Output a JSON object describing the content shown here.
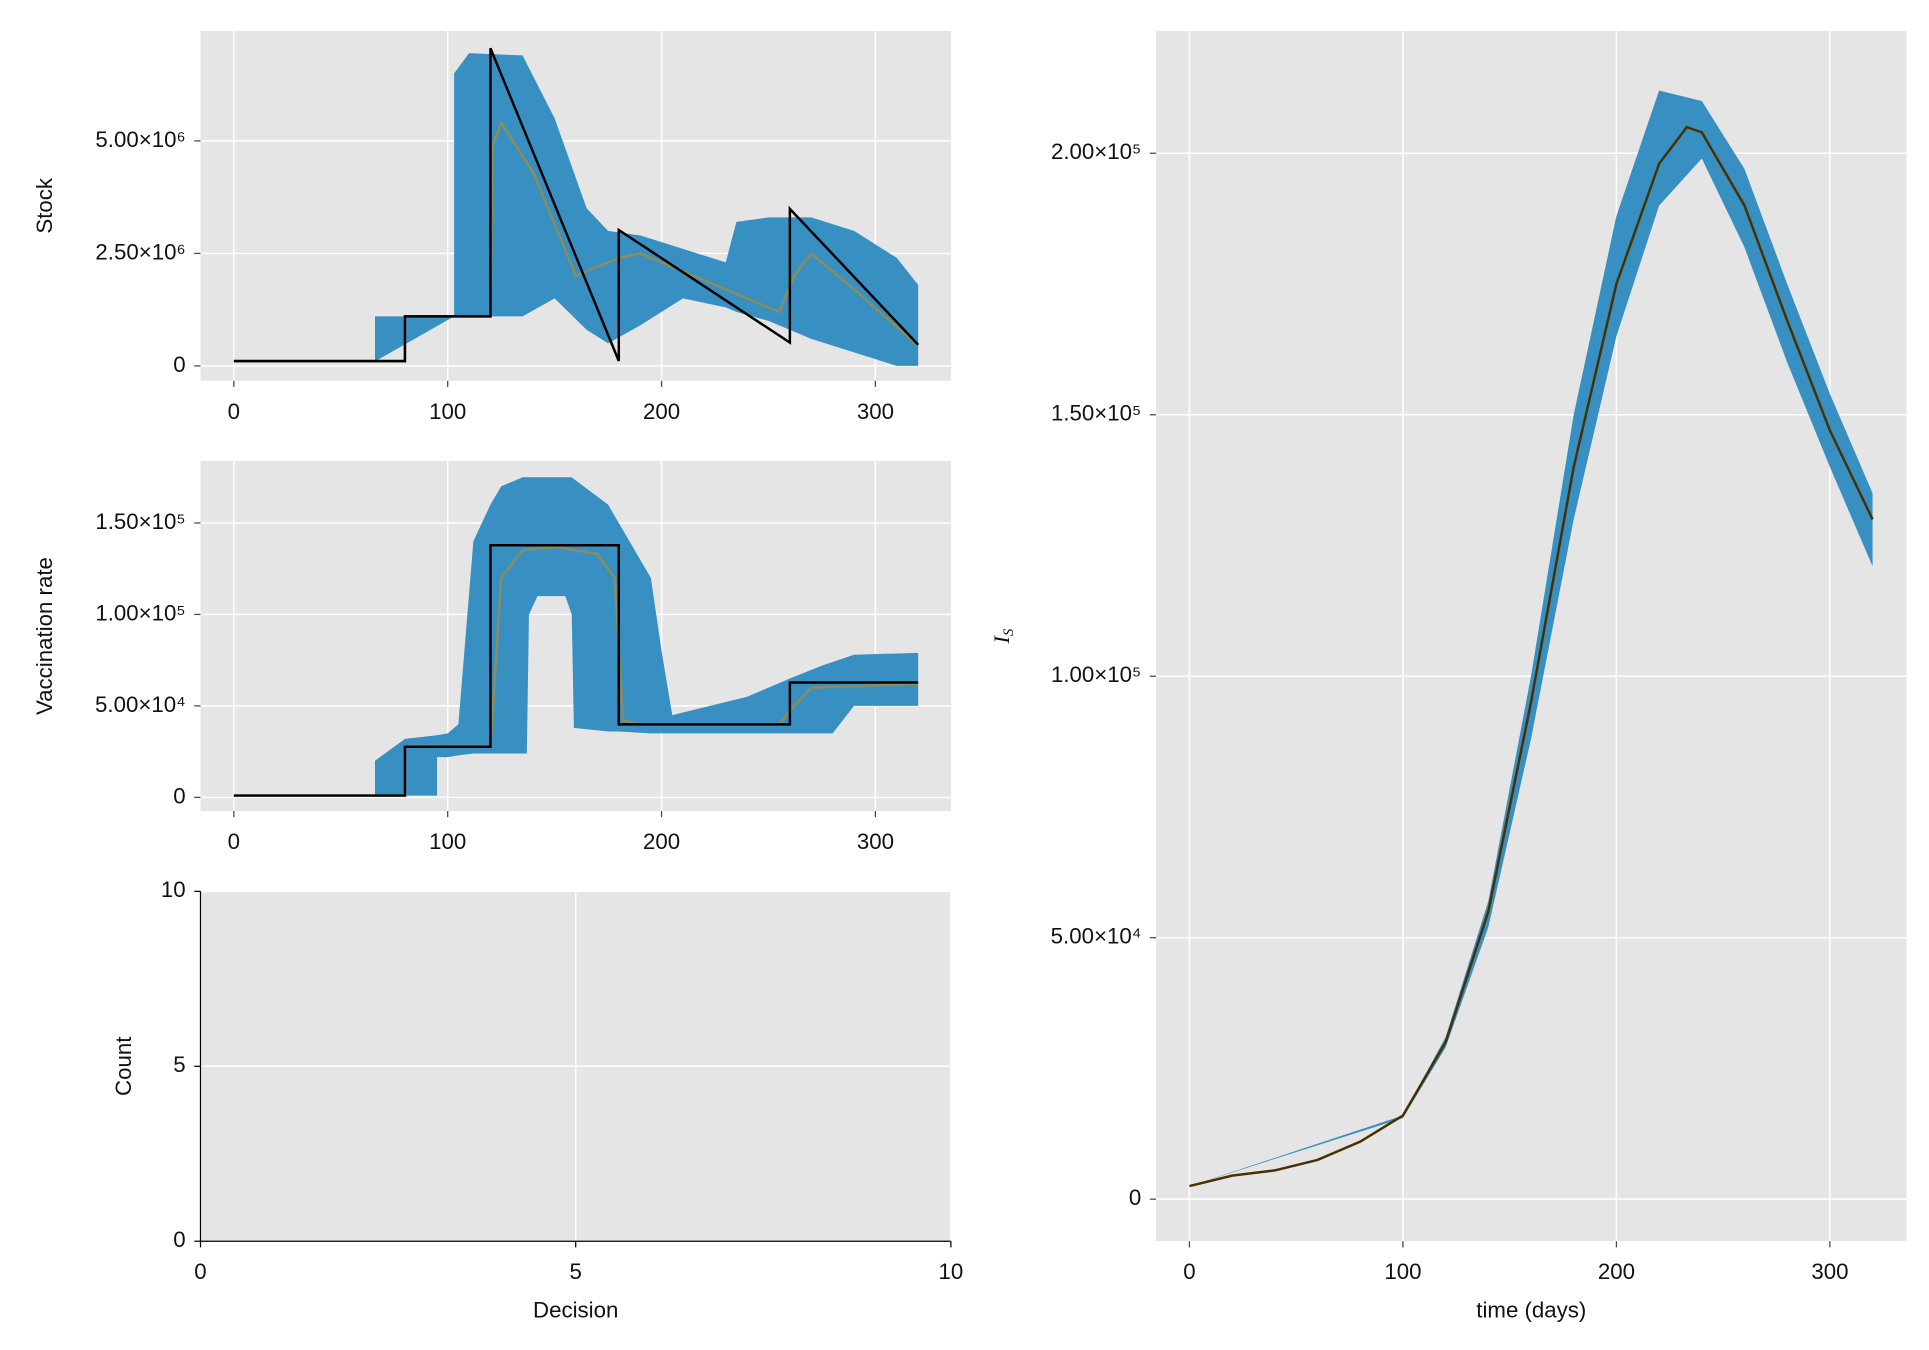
{
  "chart_data": [
    {
      "type": "line",
      "ylabel": "Stock",
      "grid": true,
      "xlim": [
        -15.6,
        335.3
      ],
      "ylim": [
        -330000,
        7445000
      ],
      "xticks": [
        0,
        100,
        200,
        300
      ],
      "yticks": [
        0,
        {
          "value": 2500000,
          "label": "2.50×10⁶"
        },
        {
          "value": 5000000,
          "label": "5.00×10⁶"
        }
      ],
      "series": [
        {
          "color": "#2e8bc0",
          "x": [
            0,
            66,
            66,
            103,
            103,
            110,
            135,
            150,
            165,
            175,
            190,
            210,
            230,
            235,
            250,
            270,
            290,
            310,
            320
          ],
          "upper": [
            100000,
            100000,
            1100000,
            1100000,
            6500000,
            6950000,
            6900000,
            5500000,
            3500000,
            3000000,
            2900000,
            2600000,
            2300000,
            3200000,
            3300000,
            3300000,
            3000000,
            2400000,
            1800000
          ],
          "lower": [
            100000,
            100000,
            100000,
            1100000,
            1100000,
            1100000,
            1100000,
            1500000,
            800000,
            500000,
            900000,
            1500000,
            1300000,
            1200000,
            1000000,
            600000,
            300000,
            0,
            0
          ]
        },
        {
          "color": "#8c8c5c",
          "x": [
            0,
            80,
            80,
            120,
            121,
            125,
            140,
            160,
            180,
            190,
            220,
            255,
            262,
            270,
            290,
            320
          ],
          "values": [
            100000,
            100000,
            1100000,
            1100000,
            4900000,
            5400000,
            4300000,
            2000000,
            2400000,
            2500000,
            1900000,
            1200000,
            2000000,
            2500000,
            1700000,
            450000
          ]
        },
        {
          "color": "#000000",
          "x": [
            0,
            80,
            80,
            120,
            120,
            180,
            180,
            260,
            260,
            320
          ],
          "values": [
            110000,
            110000,
            1100000,
            1100000,
            7060000,
            110000,
            3020000,
            520000,
            3490000,
            470000
          ]
        }
      ]
    },
    {
      "type": "line",
      "ylabel": "Vaccination rate",
      "grid": true,
      "xlim": [
        -15.6,
        335.3
      ],
      "ylim": [
        -7430,
        183800
      ],
      "xticks": [
        0,
        100,
        200,
        300
      ],
      "yticks": [
        0,
        {
          "value": 50000,
          "label": "5.00×10⁴"
        },
        {
          "value": 100000,
          "label": "1.00×10⁵"
        },
        {
          "value": 150000,
          "label": "1.50×10⁵"
        }
      ],
      "series": [
        {
          "color": "#2e8bc0",
          "x": [
            0,
            66,
            66,
            80,
            95,
            95,
            100,
            105,
            112,
            120,
            125,
            135,
            137,
            138,
            142,
            155,
            158,
            159,
            175,
            180,
            195,
            200,
            205,
            240,
            260,
            275,
            280,
            290,
            320
          ],
          "upper": [
            1000,
            1000,
            20000,
            32000,
            34000,
            34000,
            35000,
            40000,
            140000,
            160000,
            170000,
            175000,
            175000,
            175000,
            175000,
            175000,
            175000,
            174000,
            160000,
            150000,
            120000,
            80000,
            45000,
            55000,
            65000,
            72000,
            74000,
            78000,
            79000
          ],
          "lower": [
            1000,
            1000,
            1000,
            1000,
            1000,
            22000,
            22000,
            23000,
            24000,
            24000,
            24000,
            24000,
            24000,
            100000,
            110000,
            110000,
            100000,
            38000,
            36000,
            36000,
            35000,
            35000,
            35000,
            35000,
            35000,
            35000,
            35000,
            50000,
            50000
          ]
        },
        {
          "color": "#8c8c5c",
          "x": [
            0,
            80,
            80,
            120,
            125,
            135,
            150,
            170,
            178,
            182,
            190,
            255,
            262,
            270,
            320
          ],
          "values": [
            1000,
            1000,
            28000,
            28000,
            120000,
            135000,
            137000,
            133000,
            120000,
            42000,
            40000,
            40000,
            50000,
            60000,
            62000
          ]
        },
        {
          "color": "#000000",
          "x": [
            0,
            80,
            80,
            120,
            120,
            180,
            180,
            260,
            260,
            320
          ],
          "values": [
            1000,
            1000,
            27700,
            27700,
            137800,
            137800,
            39900,
            39900,
            62800,
            62800
          ]
        }
      ]
    },
    {
      "type": "histogram",
      "xlabel": "Decision",
      "ylabel": "Count",
      "grid": true,
      "xlim": [
        0,
        10
      ],
      "ylim": [
        0,
        10
      ],
      "xticks": [
        0,
        5,
        10
      ],
      "yticks": [
        0,
        5,
        10
      ]
    },
    {
      "type": "line",
      "xlabel": "time (days)",
      "ylabel": [
        "I",
        "S"
      ],
      "grid": true,
      "xlim": [
        -15.6,
        335.9
      ],
      "ylim": [
        -8040,
        223400
      ],
      "xticks": [
        0,
        100,
        200,
        300
      ],
      "yticks": [
        0,
        {
          "value": 50000,
          "label": "5.00×10⁴"
        },
        {
          "value": 100000,
          "label": "1.00×10⁵"
        },
        {
          "value": 150000,
          "label": "1.50×10⁵"
        },
        {
          "value": 200000,
          "label": "2.00×10⁵"
        }
      ],
      "series": [
        {
          "color": "#2e8bc0",
          "x": [
            0,
            100,
            120,
            140,
            160,
            180,
            200,
            220,
            240,
            260,
            280,
            300,
            320
          ],
          "upper": [
            2500,
            16000,
            31000,
            57000,
            100000,
            150000,
            188000,
            212000,
            210000,
            197000,
            175000,
            154000,
            135000
          ],
          "lower": [
            2500,
            15500,
            29000,
            52000,
            88000,
            130000,
            165000,
            190000,
            199000,
            182000,
            160000,
            140000,
            121000
          ]
        },
        {
          "color": "#4a3000",
          "x": [
            0,
            20,
            40,
            60,
            80,
            100,
            120,
            140,
            160,
            180,
            200,
            220,
            233,
            240,
            260,
            280,
            300,
            320
          ],
          "values": [
            2500,
            4500,
            5500,
            7500,
            11000,
            16000,
            30000,
            55000,
            95000,
            140000,
            175000,
            198000,
            205000,
            204000,
            190000,
            168000,
            147000,
            130000
          ]
        }
      ]
    }
  ]
}
